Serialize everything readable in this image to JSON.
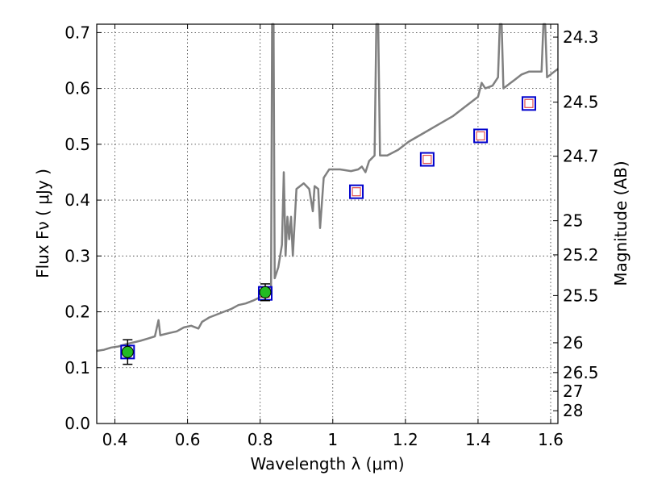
{
  "chart_data": {
    "type": "scatter",
    "xlabel": "Wavelength  λ (μm)",
    "ylabel": "Flux  Fν  ( μJy )",
    "y2label": "Magnitude (AB)",
    "xlim": [
      0.35,
      1.62
    ],
    "ylim": [
      0.0,
      0.715
    ],
    "x_ticks": [
      0.4,
      0.6,
      0.8,
      1.0,
      1.2,
      1.4,
      1.6
    ],
    "x_tick_labels": [
      "0.4",
      "0.6",
      "0.8",
      "1",
      "1.2",
      "1.4",
      "1.6"
    ],
    "y_ticks": [
      0.0,
      0.1,
      0.2,
      0.3,
      0.4,
      0.5,
      0.6,
      0.7
    ],
    "y_tick_labels": [
      "0.0",
      "0.1",
      "0.2",
      "0.3",
      "0.4",
      "0.5",
      "0.6",
      "0.7"
    ],
    "mag_ticks": [
      24.3,
      24.5,
      24.7,
      25,
      25.2,
      25.5,
      26,
      26.5,
      27,
      28
    ],
    "mag_tick_labels": [
      "24.3",
      "24.5",
      "24.7",
      "25",
      "25.2",
      "25.5",
      "26",
      "26.5",
      "27",
      "28"
    ],
    "grid": true,
    "colors": {
      "spectrum": "#808080",
      "model_box": "#0000cc",
      "model_inner": "#e05050",
      "observed": "#22bb22",
      "errorbar": "#000000"
    },
    "spectrum": [
      [
        0.35,
        0.13
      ],
      [
        0.37,
        0.132
      ],
      [
        0.39,
        0.136
      ],
      [
        0.41,
        0.138
      ],
      [
        0.43,
        0.142
      ],
      [
        0.45,
        0.145
      ],
      [
        0.47,
        0.148
      ],
      [
        0.49,
        0.152
      ],
      [
        0.51,
        0.156
      ],
      [
        0.52,
        0.185
      ],
      [
        0.525,
        0.158
      ],
      [
        0.55,
        0.162
      ],
      [
        0.57,
        0.165
      ],
      [
        0.59,
        0.172
      ],
      [
        0.61,
        0.175
      ],
      [
        0.63,
        0.17
      ],
      [
        0.64,
        0.182
      ],
      [
        0.66,
        0.19
      ],
      [
        0.68,
        0.195
      ],
      [
        0.7,
        0.2
      ],
      [
        0.72,
        0.205
      ],
      [
        0.74,
        0.212
      ],
      [
        0.76,
        0.215
      ],
      [
        0.78,
        0.22
      ],
      [
        0.8,
        0.226
      ],
      [
        0.82,
        0.232
      ],
      [
        0.83,
        0.245
      ],
      [
        0.833,
        0.72
      ],
      [
        0.837,
        0.72
      ],
      [
        0.84,
        0.26
      ],
      [
        0.85,
        0.28
      ],
      [
        0.86,
        0.32
      ],
      [
        0.865,
        0.45
      ],
      [
        0.87,
        0.3
      ],
      [
        0.875,
        0.37
      ],
      [
        0.88,
        0.33
      ],
      [
        0.885,
        0.37
      ],
      [
        0.89,
        0.3
      ],
      [
        0.9,
        0.42
      ],
      [
        0.92,
        0.43
      ],
      [
        0.935,
        0.42
      ],
      [
        0.945,
        0.38
      ],
      [
        0.95,
        0.425
      ],
      [
        0.96,
        0.42
      ],
      [
        0.965,
        0.35
      ],
      [
        0.975,
        0.44
      ],
      [
        0.99,
        0.455
      ],
      [
        1.02,
        0.455
      ],
      [
        1.05,
        0.452
      ],
      [
        1.07,
        0.455
      ],
      [
        1.08,
        0.46
      ],
      [
        1.09,
        0.45
      ],
      [
        1.1,
        0.47
      ],
      [
        1.115,
        0.48
      ],
      [
        1.12,
        0.72
      ],
      [
        1.125,
        0.72
      ],
      [
        1.13,
        0.48
      ],
      [
        1.15,
        0.48
      ],
      [
        1.18,
        0.49
      ],
      [
        1.21,
        0.505
      ],
      [
        1.25,
        0.52
      ],
      [
        1.29,
        0.535
      ],
      [
        1.33,
        0.55
      ],
      [
        1.37,
        0.57
      ],
      [
        1.4,
        0.585
      ],
      [
        1.41,
        0.61
      ],
      [
        1.42,
        0.6
      ],
      [
        1.44,
        0.605
      ],
      [
        1.455,
        0.62
      ],
      [
        1.46,
        0.72
      ],
      [
        1.465,
        0.72
      ],
      [
        1.47,
        0.6
      ],
      [
        1.5,
        0.615
      ],
      [
        1.52,
        0.625
      ],
      [
        1.54,
        0.63
      ],
      [
        1.56,
        0.63
      ],
      [
        1.575,
        0.63
      ],
      [
        1.58,
        0.72
      ],
      [
        1.585,
        0.72
      ],
      [
        1.59,
        0.62
      ],
      [
        1.6,
        0.625
      ],
      [
        1.61,
        0.63
      ],
      [
        1.62,
        0.635
      ]
    ],
    "model_photometry": [
      {
        "x": 0.435,
        "y": 0.128
      },
      {
        "x": 0.814,
        "y": 0.233
      },
      {
        "x": 1.065,
        "y": 0.415
      },
      {
        "x": 1.26,
        "y": 0.473
      },
      {
        "x": 1.407,
        "y": 0.515
      },
      {
        "x": 1.54,
        "y": 0.573
      }
    ],
    "observed_photometry": [
      {
        "x": 0.435,
        "y": 0.128,
        "err": 0.022
      },
      {
        "x": 0.814,
        "y": 0.235,
        "err": 0.015
      }
    ]
  }
}
